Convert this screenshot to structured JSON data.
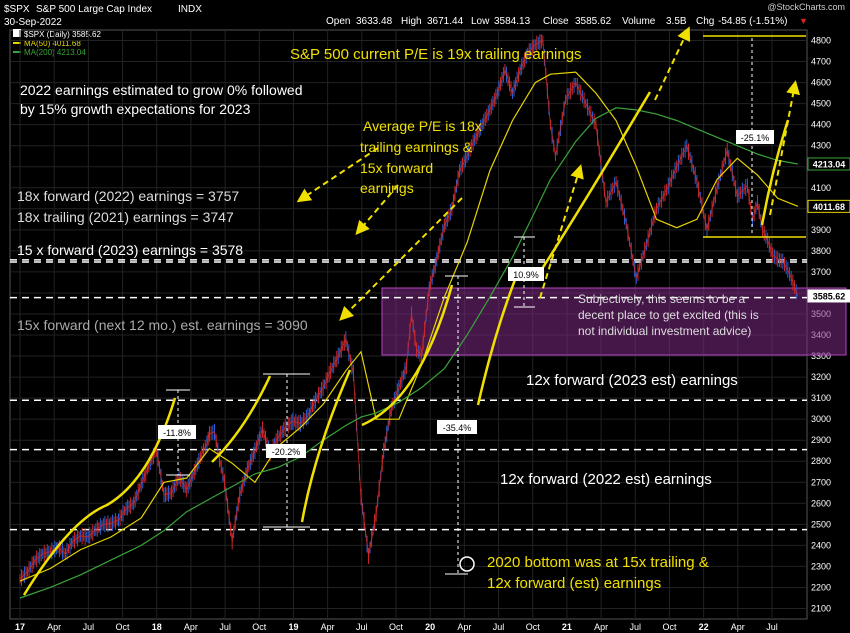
{
  "header": {
    "symbol": "$SPX",
    "index_name": "S&P 500 Large Cap Index",
    "exchange": "INDX",
    "date": "30-Sep-2022",
    "watermark": "@StockCharts.com",
    "ohlc_labels": {
      "open": "Open",
      "high": "High",
      "low": "Low",
      "close": "Close",
      "volume": "Volume",
      "chg": "Chg"
    },
    "ohlc_values": {
      "open": "3633.48",
      "high": "3671.44",
      "low": "3584.13",
      "close": "3585.62",
      "volume": "3.5B",
      "chg": "-54.85 (-1.51%)"
    },
    "chg_marker": "▼"
  },
  "legend": [
    {
      "label": "$SPX (Daily) 3585.62",
      "color": "#ffffff"
    },
    {
      "label": "MA(50) 4011.68",
      "color": "#e6d400"
    },
    {
      "label": "MA(200) 4213.04",
      "color": "#3aa33a"
    }
  ],
  "annotations": {
    "current_pe": "S&P 500 current P/E is 19x trailing earnings",
    "growth_line1": "2022 earnings estimated to grow 0% followed",
    "growth_line2": "by 15% growth expectations for 2023",
    "avg_pe_line1": "Average P/E is 18x",
    "avg_pe_line2": "trailing earnings &",
    "avg_pe_line3": "15x forward",
    "avg_pe_line4": "earnings",
    "fwd_2022": "18x forward (2022) earnings = 3757",
    "trail_2021": "18x trailing (2021) earnings = 3747",
    "fwd_2023": "15 x forward (2023) earnings = 3578",
    "fwd_12mo": "15x forward (next 12 mo.) est. earnings = 3090",
    "excited_line1": "Subjectively, this seems to be a",
    "excited_line2": "decent place to get excited (this is",
    "excited_line3": "not individual investment advice)",
    "fwd12_2023": "12x forward (2023 est) earnings",
    "fwd12_2022": "12x forward (2022 est) earnings",
    "bottom_line1": "2020 bottom was at 15x trailing &",
    "bottom_line2": "12x forward (est) earnings",
    "drawdowns": [
      "-11.8%",
      "-20.2%",
      "-35.4%",
      "10.9%",
      "-25.1%"
    ]
  },
  "chart_data": {
    "type": "line",
    "title": "$SPX S&P 500 Large Cap Index INDX",
    "ylim": [
      2050,
      4850
    ],
    "y_ticks": [
      2100,
      2200,
      2300,
      2400,
      2500,
      2600,
      2700,
      2800,
      2900,
      3000,
      3100,
      3200,
      3300,
      3400,
      3500,
      3600,
      3700,
      3800,
      3900,
      4000,
      4100,
      4200,
      4300,
      4400,
      4500,
      4600,
      4700,
      4800
    ],
    "x_ticks": [
      "17",
      "Apr",
      "Jul",
      "Oct",
      "18",
      "Apr",
      "Jul",
      "Oct",
      "19",
      "Apr",
      "Jul",
      "Oct",
      "20",
      "Apr",
      "Jul",
      "Oct",
      "21",
      "Apr",
      "Jul",
      "Oct",
      "22",
      "Apr",
      "Jul"
    ],
    "price_tags": [
      {
        "label": "4213.04",
        "value": 4213.04,
        "color": "#3aa33a"
      },
      {
        "label": "4011.68",
        "value": 4011.68,
        "color": "#e6d400"
      },
      {
        "label": "3585.62",
        "value": 3585.62,
        "color": "#ffffff"
      }
    ],
    "horizontal_levels": [
      {
        "value": 3757,
        "label": "18x forward (2022) earnings = 3757"
      },
      {
        "value": 3747,
        "label": "18x trailing (2021) earnings = 3747"
      },
      {
        "value": 3578,
        "label": "15 x forward (2023) earnings = 3578"
      },
      {
        "value": 3090,
        "label": "15x forward (next 12 mo.) est. earnings = 3090"
      },
      {
        "value": 2855,
        "label": "12x forward (2023 est) earnings"
      },
      {
        "value": 2475,
        "label": "12x forward (2022 est) earnings"
      }
    ],
    "series": [
      {
        "name": "$SPX (Daily)",
        "x": [
          0,
          3,
          6,
          9,
          12,
          15,
          18,
          21,
          24,
          27,
          30,
          33,
          36,
          39,
          42,
          45,
          48,
          51,
          54,
          57,
          60,
          63,
          66,
          69,
          72,
          74,
          75,
          77,
          79,
          81,
          84,
          87,
          90,
          93,
          96,
          99,
          102,
          105,
          108,
          111,
          114,
          117,
          120,
          123,
          126,
          129,
          132,
          135,
          138,
          141,
          144,
          147,
          150,
          153,
          155,
          157,
          159,
          162,
          165,
          168,
          171,
          174,
          177,
          180,
          183,
          186,
          189,
          192,
          195,
          198,
          201,
          204,
          207,
          210,
          212,
          216,
          220,
          224,
          228,
          232,
          236,
          240,
          244,
          248,
          252,
          256,
          260,
          264,
          268,
          272,
          276,
          280,
          284,
          288,
          290,
          292,
          294,
          296,
          298,
          300,
          302,
          304,
          306,
          308
        ],
        "values": [
          2240,
          2275,
          2330,
          2360,
          2370,
          2390,
          2360,
          2420,
          2445,
          2440,
          2475,
          2500,
          2505,
          2520,
          2575,
          2600,
          2690,
          2780,
          2855,
          2640,
          2650,
          2725,
          2665,
          2750,
          2835,
          2885,
          2930,
          2940,
          2810,
          2700,
          2420,
          2640,
          2760,
          2850,
          2950,
          2840,
          2910,
          2960,
          2990,
          2980,
          3015,
          3090,
          3150,
          3230,
          3300,
          3380,
          3220,
          2630,
          2350,
          2550,
          2850,
          3050,
          3150,
          3250,
          3500,
          3330,
          3300,
          3620,
          3760,
          3920,
          4000,
          4180,
          4250,
          4330,
          4400,
          4470,
          4550,
          4660,
          4550,
          4660,
          4740,
          4780,
          4800,
          4400,
          4250,
          4520,
          4600,
          4500,
          4400,
          4030,
          4130,
          3930,
          3670,
          3830,
          4000,
          4090,
          4200,
          4300,
          4130,
          3900,
          4100,
          4280,
          4060,
          4110,
          3950,
          4030,
          3900,
          3850,
          3780,
          3760,
          3750,
          3710,
          3650,
          3585
        ]
      },
      {
        "name": "MA(50)",
        "x": [
          0,
          12,
          24,
          36,
          48,
          57,
          66,
          75,
          84,
          93,
          102,
          111,
          120,
          129,
          135,
          141,
          150,
          159,
          168,
          177,
          186,
          195,
          204,
          210,
          220,
          228,
          236,
          244,
          252,
          260,
          268,
          276,
          284,
          292,
          300,
          308
        ],
        "values": [
          2230,
          2290,
          2380,
          2440,
          2530,
          2700,
          2720,
          2860,
          2790,
          2700,
          2870,
          2960,
          3070,
          3230,
          3320,
          3000,
          3000,
          3260,
          3580,
          3840,
          4180,
          4420,
          4600,
          4640,
          4650,
          4550,
          4420,
          4200,
          3950,
          3910,
          3950,
          4140,
          4240,
          4160,
          4050,
          4011.68
        ]
      },
      {
        "name": "MA(200)",
        "x": [
          0,
          12,
          24,
          36,
          48,
          57,
          66,
          75,
          84,
          93,
          102,
          111,
          120,
          129,
          135,
          141,
          150,
          159,
          168,
          177,
          186,
          195,
          204,
          210,
          220,
          228,
          236,
          244,
          252,
          260,
          268,
          276,
          284,
          292,
          300,
          308
        ],
        "values": [
          2150,
          2200,
          2260,
          2330,
          2400,
          2470,
          2560,
          2620,
          2680,
          2740,
          2770,
          2820,
          2900,
          2970,
          3010,
          3030,
          3080,
          3150,
          3240,
          3400,
          3580,
          3770,
          3990,
          4140,
          4320,
          4430,
          4480,
          4470,
          4450,
          4420,
          4380,
          4340,
          4300,
          4260,
          4230,
          4213.04
        ]
      }
    ]
  }
}
